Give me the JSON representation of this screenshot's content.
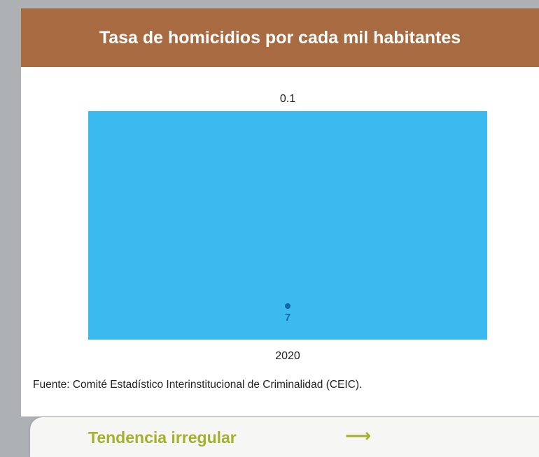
{
  "card": {
    "title": "Tasa de homicidios por cada mil habitantes",
    "header_color": "#a86a40",
    "source": "Fuente: Comité Estadístico Interinstitucional de Criminalidad (CEIC)."
  },
  "chart_data": {
    "type": "bar",
    "categories": [
      "2020"
    ],
    "values": [
      0.1
    ],
    "data_labels": [
      "0.1"
    ],
    "bar_color": "#3bbaef",
    "marker": {
      "label": "7",
      "color": "#1566a8"
    },
    "grid": false,
    "title": "",
    "xlabel": "",
    "ylabel": ""
  },
  "trend": {
    "label": "Tendencia irregular",
    "arrow_icon": "arrow-right-icon",
    "arrow_glyph": "⟶",
    "color": "#a3b12c"
  }
}
